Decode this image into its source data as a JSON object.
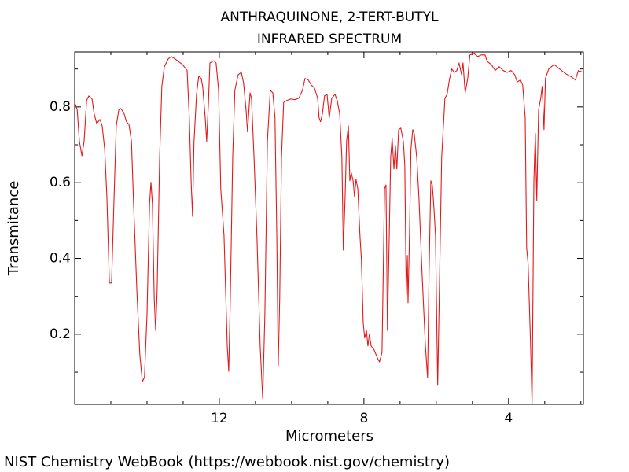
{
  "chart_data": {
    "type": "line",
    "title": "ANTHRAQUINONE, 2-TERT-BUTYL",
    "subtitle": "INFRARED SPECTRUM",
    "xlabel": "Micrometers",
    "ylabel": "Transmitance",
    "xlim": [
      16,
      1.93
    ],
    "ylim": [
      0.015,
      0.945
    ],
    "xticks": [
      12,
      8,
      4
    ],
    "xminorticks": [
      15,
      14,
      13,
      11,
      10,
      9,
      7,
      6,
      5,
      3,
      2
    ],
    "yticks": [
      0.2,
      0.4,
      0.6,
      0.8
    ],
    "yminorticks": [
      0.1,
      0.3,
      0.5,
      0.7,
      0.9
    ],
    "grid": false,
    "x": [
      16.0,
      15.93,
      15.87,
      15.8,
      15.74,
      15.67,
      15.61,
      15.52,
      15.46,
      15.39,
      15.3,
      15.24,
      15.17,
      15.11,
      15.04,
      14.98,
      14.91,
      14.85,
      14.78,
      14.72,
      14.63,
      14.57,
      14.5,
      14.43,
      14.37,
      14.28,
      14.2,
      14.13,
      14.07,
      14.0,
      13.93,
      13.89,
      13.85,
      13.8,
      13.76,
      13.72,
      13.65,
      13.59,
      13.52,
      13.41,
      13.33,
      13.2,
      13.02,
      12.89,
      12.83,
      12.78,
      12.74,
      12.7,
      12.63,
      12.57,
      12.5,
      12.46,
      12.39,
      12.35,
      12.3,
      12.26,
      12.15,
      12.09,
      12.02,
      11.96,
      11.87,
      11.78,
      11.74,
      11.7,
      11.63,
      11.57,
      11.48,
      11.39,
      11.33,
      11.26,
      11.22,
      11.15,
      11.11,
      11.04,
      10.96,
      10.87,
      10.8,
      10.74,
      10.67,
      10.59,
      10.52,
      10.46,
      10.41,
      10.37,
      10.33,
      10.28,
      10.22,
      10.13,
      10.02,
      9.91,
      9.8,
      9.7,
      9.63,
      9.54,
      9.46,
      9.37,
      9.28,
      9.24,
      9.2,
      9.15,
      9.09,
      9.02,
      8.96,
      8.89,
      8.8,
      8.74,
      8.67,
      8.61,
      8.57,
      8.52,
      8.48,
      8.43,
      8.39,
      8.35,
      8.3,
      8.26,
      8.22,
      8.17,
      8.11,
      8.07,
      8.02,
      7.98,
      7.93,
      7.89,
      7.85,
      7.8,
      7.72,
      7.63,
      7.57,
      7.5,
      7.43,
      7.39,
      7.35,
      7.3,
      7.26,
      7.22,
      7.17,
      7.13,
      7.09,
      7.04,
      6.98,
      6.91,
      6.87,
      6.83,
      6.8,
      6.78,
      6.74,
      6.7,
      6.65,
      6.61,
      6.54,
      6.48,
      6.39,
      6.3,
      6.24,
      6.2,
      6.15,
      6.11,
      6.07,
      6.02,
      5.98,
      5.96,
      5.91,
      5.85,
      5.76,
      5.7,
      5.63,
      5.57,
      5.5,
      5.43,
      5.37,
      5.3,
      5.26,
      5.2,
      5.13,
      5.07,
      4.96,
      4.85,
      4.76,
      4.65,
      4.59,
      4.48,
      4.37,
      4.26,
      4.15,
      4.04,
      3.93,
      3.83,
      3.76,
      3.67,
      3.61,
      3.54,
      3.5,
      3.46,
      3.39,
      3.35,
      3.3,
      3.26,
      3.22,
      3.17,
      3.11,
      3.07,
      3.02,
      2.98,
      2.89,
      2.74,
      2.59,
      2.41,
      2.26,
      2.15,
      2.07,
      1.93
    ],
    "series": [
      {
        "color": "#e31a1c",
        "values": [
          0.812,
          0.792,
          0.709,
          0.671,
          0.709,
          0.817,
          0.829,
          0.821,
          0.781,
          0.756,
          0.767,
          0.75,
          0.688,
          0.563,
          0.335,
          0.335,
          0.563,
          0.75,
          0.792,
          0.796,
          0.781,
          0.761,
          0.754,
          0.709,
          0.543,
          0.314,
          0.148,
          0.075,
          0.086,
          0.252,
          0.543,
          0.601,
          0.543,
          0.293,
          0.21,
          0.314,
          0.667,
          0.854,
          0.906,
          0.927,
          0.933,
          0.925,
          0.912,
          0.896,
          0.771,
          0.605,
          0.511,
          0.709,
          0.833,
          0.881,
          0.875,
          0.854,
          0.771,
          0.709,
          0.812,
          0.916,
          0.922,
          0.916,
          0.844,
          0.584,
          0.46,
          0.169,
          0.102,
          0.273,
          0.667,
          0.844,
          0.885,
          0.891,
          0.864,
          0.792,
          0.734,
          0.837,
          0.823,
          0.667,
          0.46,
          0.169,
          0.03,
          0.252,
          0.709,
          0.844,
          0.837,
          0.771,
          0.46,
          0.117,
          0.293,
          0.667,
          0.812,
          0.817,
          0.821,
          0.819,
          0.823,
          0.844,
          0.875,
          0.871,
          0.858,
          0.85,
          0.823,
          0.771,
          0.761,
          0.781,
          0.829,
          0.833,
          0.771,
          0.823,
          0.833,
          0.817,
          0.781,
          0.667,
          0.422,
          0.563,
          0.709,
          0.75,
          0.605,
          0.626,
          0.605,
          0.563,
          0.609,
          0.584,
          0.46,
          0.397,
          0.231,
          0.19,
          0.21,
          0.169,
          0.2,
          0.169,
          0.159,
          0.138,
          0.127,
          0.152,
          0.584,
          0.594,
          0.21,
          0.46,
          0.667,
          0.717,
          0.636,
          0.698,
          0.636,
          0.74,
          0.744,
          0.709,
          0.646,
          0.304,
          0.408,
          0.283,
          0.46,
          0.688,
          0.74,
          0.73,
          0.667,
          0.563,
          0.356,
          0.169,
          0.086,
          0.356,
          0.605,
          0.594,
          0.543,
          0.46,
          0.19,
          0.065,
          0.335,
          0.667,
          0.823,
          0.833,
          0.875,
          0.9,
          0.891,
          0.896,
          0.916,
          0.885,
          0.916,
          0.837,
          0.875,
          0.937,
          0.941,
          0.933,
          0.937,
          0.937,
          0.92,
          0.912,
          0.896,
          0.906,
          0.896,
          0.891,
          0.896,
          0.885,
          0.866,
          0.871,
          0.858,
          0.771,
          0.428,
          0.387,
          0.169,
          0.015,
          0.605,
          0.73,
          0.553,
          0.792,
          0.823,
          0.854,
          0.74,
          0.875,
          0.9,
          0.912,
          0.9,
          0.887,
          0.879,
          0.871,
          0.896,
          0.891
        ]
      }
    ]
  },
  "footer": "NIST Chemistry WebBook (https://webbook.nist.gov/chemistry)"
}
